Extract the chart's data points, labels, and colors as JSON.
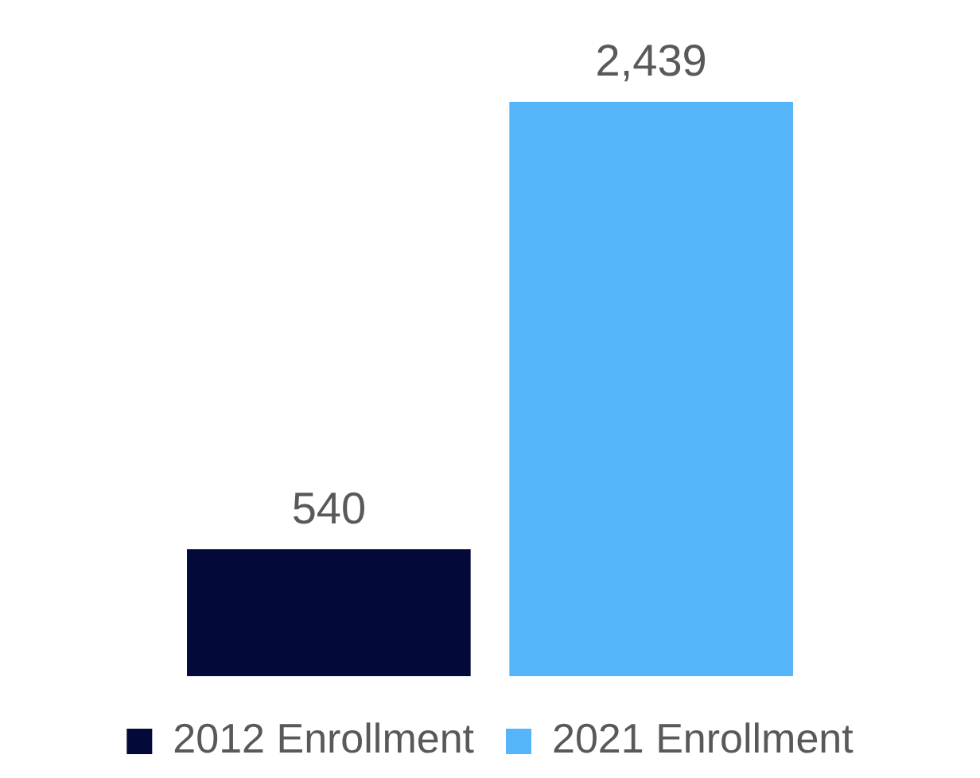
{
  "chart_data": {
    "type": "bar",
    "categories": [
      null
    ],
    "series": [
      {
        "name": "2012 Enrollment",
        "color": "#030a3a",
        "values": [
          540
        ],
        "value_labels": [
          "540"
        ]
      },
      {
        "name": "2021 Enrollment",
        "color": "#56b4f8",
        "values": [
          2439
        ],
        "value_labels": [
          "2,439"
        ]
      }
    ],
    "legend": "bottom",
    "grid": false
  }
}
